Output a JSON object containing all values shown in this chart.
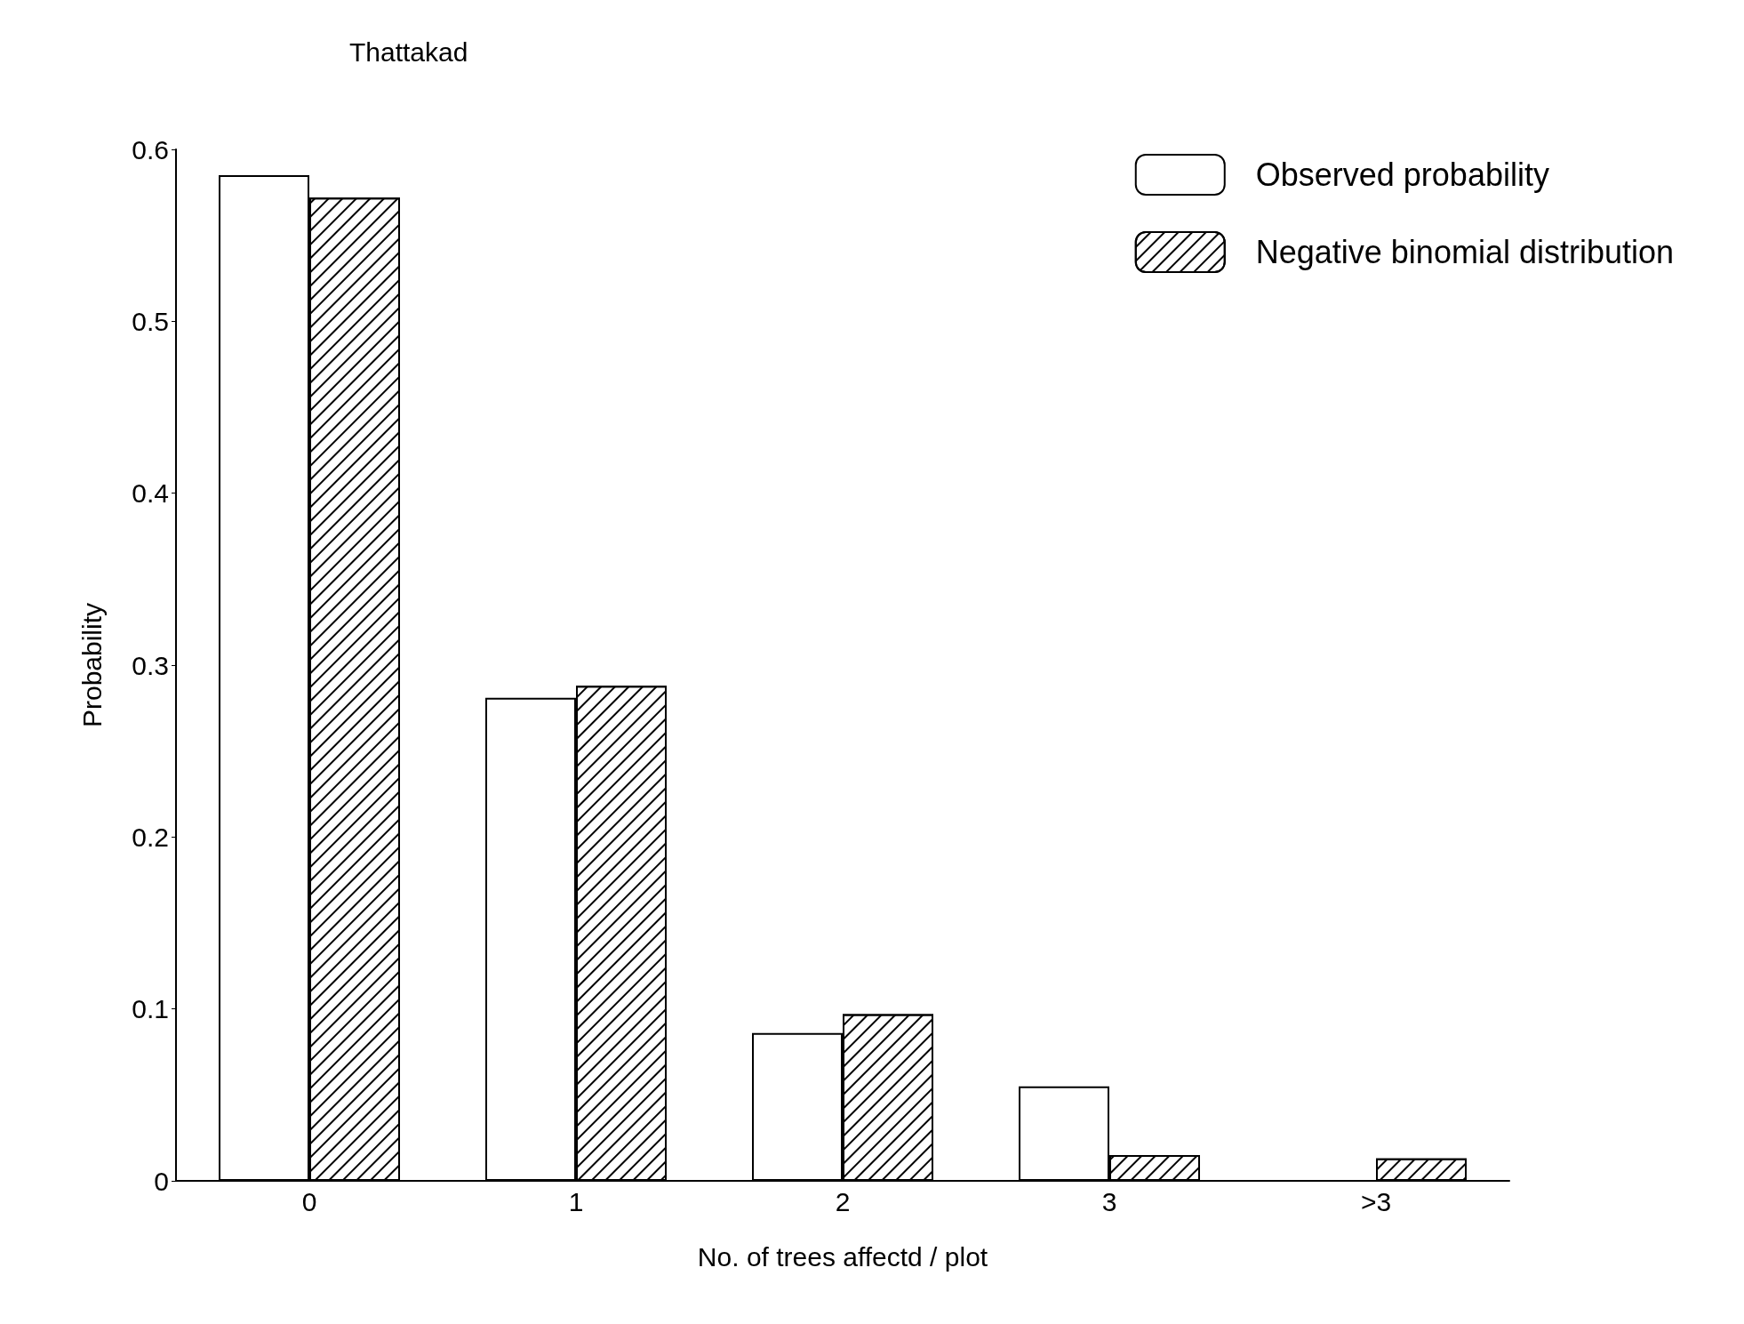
{
  "chart_data": {
    "type": "bar",
    "title": "Thattakad",
    "xlabel": "No. of trees affectd / plot",
    "ylabel": "Probability",
    "categories": [
      "0",
      "1",
      "2",
      "3",
      ">3"
    ],
    "series": [
      {
        "name": "Observed probability",
        "color": "#ffffff",
        "values": [
          0.585,
          0.281,
          0.086,
          0.055,
          null
        ]
      },
      {
        "name": "Negative binomial distribution",
        "color": "#000000",
        "values": [
          0.572,
          0.288,
          0.097,
          0.015,
          0.013
        ]
      }
    ],
    "ylim": [
      0,
      0.6
    ],
    "yticks": [
      0,
      0.1,
      0.2,
      0.3,
      0.4,
      0.5,
      0.6
    ],
    "grid": false,
    "legend": "top right"
  }
}
